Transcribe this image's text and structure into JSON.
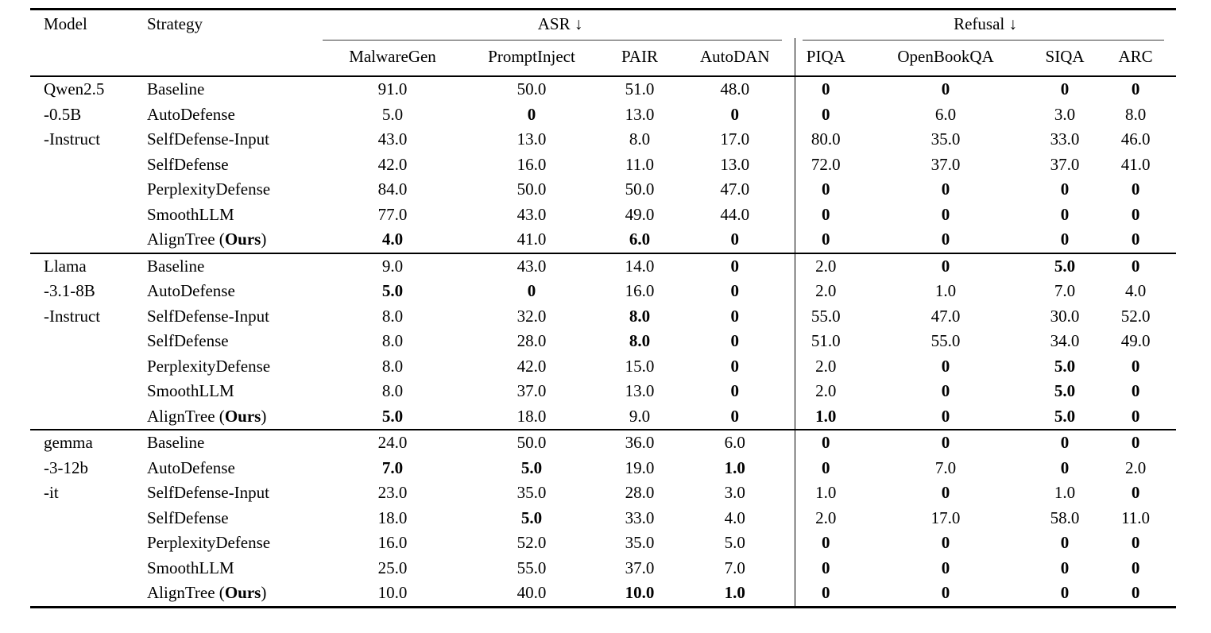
{
  "table": {
    "header": {
      "model": "Model",
      "strategy": "Strategy",
      "asr_group": "ASR ↓",
      "refusal_group": "Refusal ↓"
    },
    "sub_headers": [
      "MalwareGen",
      "PromptInject",
      "PAIR",
      "AutoDAN",
      "PIQA",
      "OpenBookQA",
      "SIQA",
      "ARC"
    ],
    "groups": [
      {
        "model_lines": [
          "Qwen2.5",
          "-0.5B",
          "-Instruct"
        ],
        "rows": [
          {
            "strategy": [
              [
                "Baseline",
                false
              ]
            ],
            "values": [
              [
                "91.0",
                false
              ],
              [
                "50.0",
                false
              ],
              [
                "51.0",
                false
              ],
              [
                "48.0",
                false
              ],
              [
                "0",
                true
              ],
              [
                "0",
                true
              ],
              [
                "0",
                true
              ],
              [
                "0",
                true
              ]
            ]
          },
          {
            "strategy": [
              [
                "AutoDefense",
                false
              ]
            ],
            "values": [
              [
                "5.0",
                false
              ],
              [
                "0",
                true
              ],
              [
                "13.0",
                false
              ],
              [
                "0",
                true
              ],
              [
                "0",
                true
              ],
              [
                "6.0",
                false
              ],
              [
                "3.0",
                false
              ],
              [
                "8.0",
                false
              ]
            ]
          },
          {
            "strategy": [
              [
                "SelfDefense-Input",
                false
              ]
            ],
            "values": [
              [
                "43.0",
                false
              ],
              [
                "13.0",
                false
              ],
              [
                "8.0",
                false
              ],
              [
                "17.0",
                false
              ],
              [
                "80.0",
                false
              ],
              [
                "35.0",
                false
              ],
              [
                "33.0",
                false
              ],
              [
                "46.0",
                false
              ]
            ]
          },
          {
            "strategy": [
              [
                "SelfDefense",
                false
              ]
            ],
            "values": [
              [
                "42.0",
                false
              ],
              [
                "16.0",
                false
              ],
              [
                "11.0",
                false
              ],
              [
                "13.0",
                false
              ],
              [
                "72.0",
                false
              ],
              [
                "37.0",
                false
              ],
              [
                "37.0",
                false
              ],
              [
                "41.0",
                false
              ]
            ]
          },
          {
            "strategy": [
              [
                "PerplexityDefense",
                false
              ]
            ],
            "values": [
              [
                "84.0",
                false
              ],
              [
                "50.0",
                false
              ],
              [
                "50.0",
                false
              ],
              [
                "47.0",
                false
              ],
              [
                "0",
                true
              ],
              [
                "0",
                true
              ],
              [
                "0",
                true
              ],
              [
                "0",
                true
              ]
            ]
          },
          {
            "strategy": [
              [
                "SmoothLLM",
                false
              ]
            ],
            "values": [
              [
                "77.0",
                false
              ],
              [
                "43.0",
                false
              ],
              [
                "49.0",
                false
              ],
              [
                "44.0",
                false
              ],
              [
                "0",
                true
              ],
              [
                "0",
                true
              ],
              [
                "0",
                true
              ],
              [
                "0",
                true
              ]
            ]
          },
          {
            "strategy": [
              [
                "AlignTree (",
                false
              ],
              [
                "Ours",
                true
              ],
              [
                ")",
                false
              ]
            ],
            "values": [
              [
                "4.0",
                true
              ],
              [
                "41.0",
                false
              ],
              [
                "6.0",
                true
              ],
              [
                "0",
                true
              ],
              [
                "0",
                true
              ],
              [
                "0",
                true
              ],
              [
                "0",
                true
              ],
              [
                "0",
                true
              ]
            ]
          }
        ]
      },
      {
        "model_lines": [
          "Llama",
          "-3.1-8B",
          "-Instruct"
        ],
        "rows": [
          {
            "strategy": [
              [
                "Baseline",
                false
              ]
            ],
            "values": [
              [
                "9.0",
                false
              ],
              [
                "43.0",
                false
              ],
              [
                "14.0",
                false
              ],
              [
                "0",
                true
              ],
              [
                "2.0",
                false
              ],
              [
                "0",
                true
              ],
              [
                "5.0",
                true
              ],
              [
                "0",
                true
              ]
            ]
          },
          {
            "strategy": [
              [
                "AutoDefense",
                false
              ]
            ],
            "values": [
              [
                "5.0",
                true
              ],
              [
                "0",
                true
              ],
              [
                "16.0",
                false
              ],
              [
                "0",
                true
              ],
              [
                "2.0",
                false
              ],
              [
                "1.0",
                false
              ],
              [
                "7.0",
                false
              ],
              [
                "4.0",
                false
              ]
            ]
          },
          {
            "strategy": [
              [
                "SelfDefense-Input",
                false
              ]
            ],
            "values": [
              [
                "8.0",
                false
              ],
              [
                "32.0",
                false
              ],
              [
                "8.0",
                true
              ],
              [
                "0",
                true
              ],
              [
                "55.0",
                false
              ],
              [
                "47.0",
                false
              ],
              [
                "30.0",
                false
              ],
              [
                "52.0",
                false
              ]
            ]
          },
          {
            "strategy": [
              [
                "SelfDefense",
                false
              ]
            ],
            "values": [
              [
                "8.0",
                false
              ],
              [
                "28.0",
                false
              ],
              [
                "8.0",
                true
              ],
              [
                "0",
                true
              ],
              [
                "51.0",
                false
              ],
              [
                "55.0",
                false
              ],
              [
                "34.0",
                false
              ],
              [
                "49.0",
                false
              ]
            ]
          },
          {
            "strategy": [
              [
                "PerplexityDefense",
                false
              ]
            ],
            "values": [
              [
                "8.0",
                false
              ],
              [
                "42.0",
                false
              ],
              [
                "15.0",
                false
              ],
              [
                "0",
                true
              ],
              [
                "2.0",
                false
              ],
              [
                "0",
                true
              ],
              [
                "5.0",
                true
              ],
              [
                "0",
                true
              ]
            ]
          },
          {
            "strategy": [
              [
                "SmoothLLM",
                false
              ]
            ],
            "values": [
              [
                "8.0",
                false
              ],
              [
                "37.0",
                false
              ],
              [
                "13.0",
                false
              ],
              [
                "0",
                true
              ],
              [
                "2.0",
                false
              ],
              [
                "0",
                true
              ],
              [
                "5.0",
                true
              ],
              [
                "0",
                true
              ]
            ]
          },
          {
            "strategy": [
              [
                "AlignTree (",
                false
              ],
              [
                "Ours",
                true
              ],
              [
                ")",
                false
              ]
            ],
            "values": [
              [
                "5.0",
                true
              ],
              [
                "18.0",
                false
              ],
              [
                "9.0",
                false
              ],
              [
                "0",
                true
              ],
              [
                "1.0",
                true
              ],
              [
                "0",
                true
              ],
              [
                "5.0",
                true
              ],
              [
                "0",
                true
              ]
            ]
          }
        ]
      },
      {
        "model_lines": [
          "gemma",
          "-3-12b",
          "-it"
        ],
        "rows": [
          {
            "strategy": [
              [
                "Baseline",
                false
              ]
            ],
            "values": [
              [
                "24.0",
                false
              ],
              [
                "50.0",
                false
              ],
              [
                "36.0",
                false
              ],
              [
                "6.0",
                false
              ],
              [
                "0",
                true
              ],
              [
                "0",
                true
              ],
              [
                "0",
                true
              ],
              [
                "0",
                true
              ]
            ]
          },
          {
            "strategy": [
              [
                "AutoDefense",
                false
              ]
            ],
            "values": [
              [
                "7.0",
                true
              ],
              [
                "5.0",
                true
              ],
              [
                "19.0",
                false
              ],
              [
                "1.0",
                true
              ],
              [
                "0",
                true
              ],
              [
                "7.0",
                false
              ],
              [
                "0",
                true
              ],
              [
                "2.0",
                false
              ]
            ]
          },
          {
            "strategy": [
              [
                "SelfDefense-Input",
                false
              ]
            ],
            "values": [
              [
                "23.0",
                false
              ],
              [
                "35.0",
                false
              ],
              [
                "28.0",
                false
              ],
              [
                "3.0",
                false
              ],
              [
                "1.0",
                false
              ],
              [
                "0",
                true
              ],
              [
                "1.0",
                false
              ],
              [
                "0",
                true
              ]
            ]
          },
          {
            "strategy": [
              [
                "SelfDefense",
                false
              ]
            ],
            "values": [
              [
                "18.0",
                false
              ],
              [
                "5.0",
                true
              ],
              [
                "33.0",
                false
              ],
              [
                "4.0",
                false
              ],
              [
                "2.0",
                false
              ],
              [
                "17.0",
                false
              ],
              [
                "58.0",
                false
              ],
              [
                "11.0",
                false
              ]
            ]
          },
          {
            "strategy": [
              [
                "PerplexityDefense",
                false
              ]
            ],
            "values": [
              [
                "16.0",
                false
              ],
              [
                "52.0",
                false
              ],
              [
                "35.0",
                false
              ],
              [
                "5.0",
                false
              ],
              [
                "0",
                true
              ],
              [
                "0",
                true
              ],
              [
                "0",
                true
              ],
              [
                "0",
                true
              ]
            ]
          },
          {
            "strategy": [
              [
                "SmoothLLM",
                false
              ]
            ],
            "values": [
              [
                "25.0",
                false
              ],
              [
                "55.0",
                false
              ],
              [
                "37.0",
                false
              ],
              [
                "7.0",
                false
              ],
              [
                "0",
                true
              ],
              [
                "0",
                true
              ],
              [
                "0",
                true
              ],
              [
                "0",
                true
              ]
            ]
          },
          {
            "strategy": [
              [
                "AlignTree (",
                false
              ],
              [
                "Ours",
                true
              ],
              [
                ")",
                false
              ]
            ],
            "values": [
              [
                "10.0",
                false
              ],
              [
                "40.0",
                false
              ],
              [
                "10.0",
                true
              ],
              [
                "1.0",
                true
              ],
              [
                "0",
                true
              ],
              [
                "0",
                true
              ],
              [
                "0",
                true
              ],
              [
                "0",
                true
              ]
            ]
          }
        ]
      }
    ]
  },
  "colors": {
    "text": "#000000",
    "background": "#ffffff",
    "rule": "#000000"
  }
}
